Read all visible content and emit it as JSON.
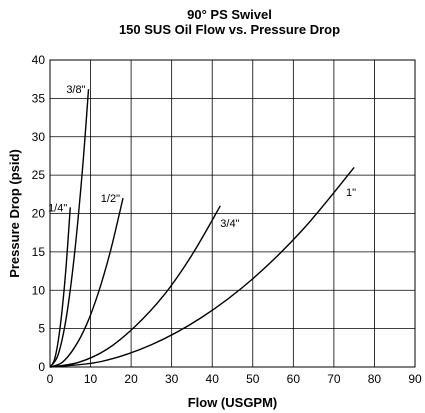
{
  "chart_data": {
    "type": "line",
    "title": "90° PS Swivel",
    "subtitle": "150 SUS Oil Flow vs. Pressure Drop",
    "xlabel": "Flow (USGPM)",
    "ylabel": "Pressure Drop (psid)",
    "xlim": [
      0,
      90
    ],
    "ylim": [
      0,
      40
    ],
    "xticks": [
      0,
      10,
      20,
      30,
      40,
      50,
      60,
      70,
      80,
      90
    ],
    "yticks": [
      0,
      5,
      10,
      15,
      20,
      25,
      30,
      35,
      40
    ],
    "grid": true,
    "series": [
      {
        "name": "1/4\"",
        "x": [
          0,
          1,
          2,
          3,
          4,
          5
        ],
        "y": [
          0,
          0.8,
          3.3,
          7.5,
          13.3,
          20.8
        ],
        "label_at": [
          5,
          20.8
        ],
        "label_pos": "left"
      },
      {
        "name": "3/8\"",
        "x": [
          0,
          2,
          4,
          6,
          8,
          9.5
        ],
        "y": [
          0,
          1.6,
          6.4,
          14.5,
          25.7,
          36.2
        ],
        "label_at": [
          9.5,
          36.2
        ],
        "label_pos": "left"
      },
      {
        "name": "1/2\"",
        "x": [
          0,
          3,
          6,
          9,
          12,
          15,
          18
        ],
        "y": [
          0,
          0.6,
          2.5,
          5.5,
          9.8,
          15.3,
          22
        ],
        "label_at": [
          18,
          22
        ],
        "label_pos": "left"
      },
      {
        "name": "3/4\"",
        "x": [
          0,
          7,
          14,
          21,
          28,
          35,
          42
        ],
        "y": [
          0,
          0.6,
          2.3,
          5.3,
          9.3,
          14.6,
          21
        ],
        "label_at": [
          41,
          19.3
        ],
        "label_pos": "right"
      },
      {
        "name": "1\"",
        "x": [
          0,
          12.5,
          25,
          37.5,
          50,
          62.5,
          75
        ],
        "y": [
          0,
          0.7,
          2.9,
          6.5,
          11.5,
          18,
          26
        ],
        "label_at": [
          72,
          23.3
        ],
        "label_pos": "right"
      }
    ]
  }
}
